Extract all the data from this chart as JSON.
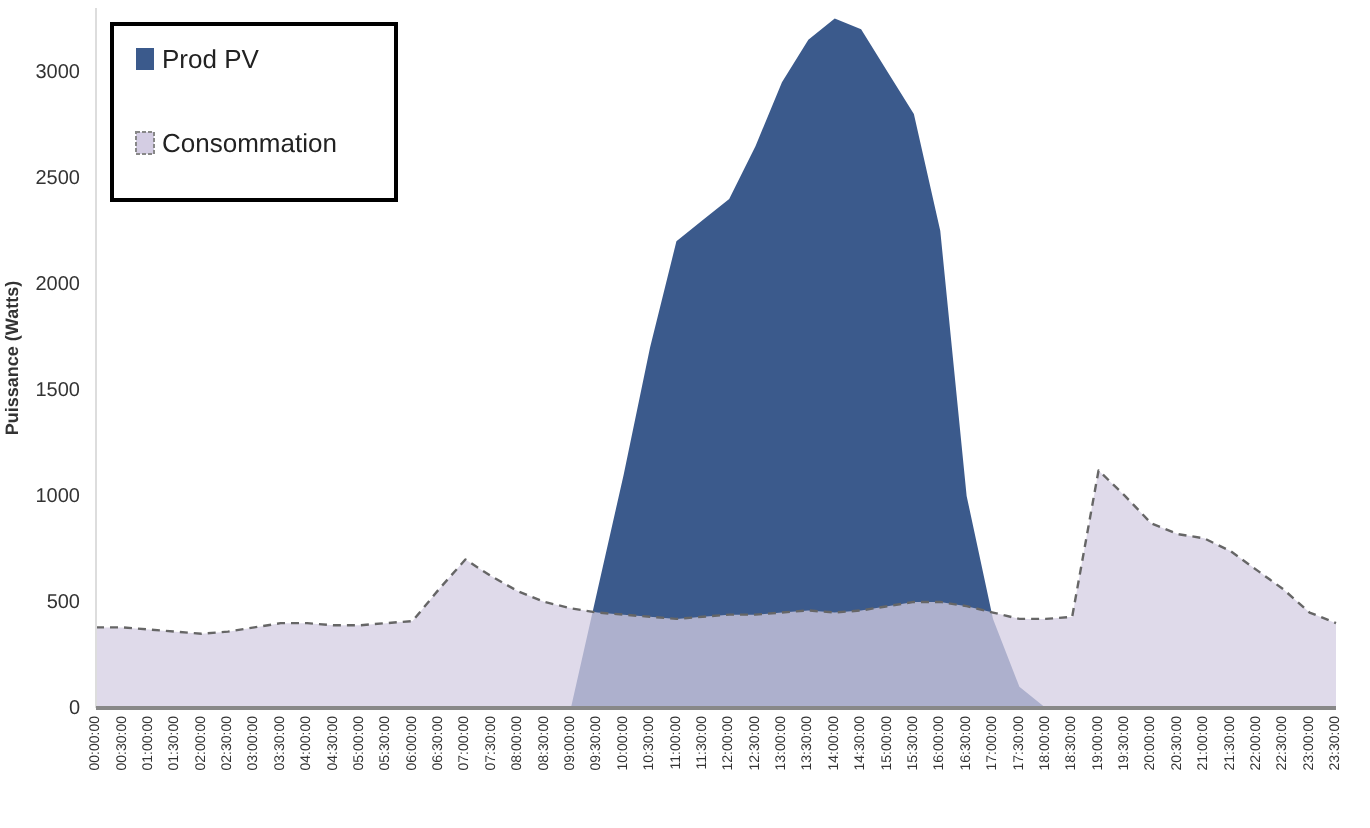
{
  "chart_data": {
    "type": "area",
    "ylabel": "Puissance (Watts)",
    "categories": [
      "00:00:00",
      "00:30:00",
      "01:00:00",
      "01:30:00",
      "02:00:00",
      "02:30:00",
      "03:00:00",
      "03:30:00",
      "04:00:00",
      "04:30:00",
      "05:00:00",
      "05:30:00",
      "06:00:00",
      "06:30:00",
      "07:00:00",
      "07:30:00",
      "08:00:00",
      "08:30:00",
      "09:00:00",
      "09:30:00",
      "10:00:00",
      "10:30:00",
      "11:00:00",
      "11:30:00",
      "12:00:00",
      "12:30:00",
      "13:00:00",
      "13:30:00",
      "14:00:00",
      "14:30:00",
      "15:00:00",
      "15:30:00",
      "16:00:00",
      "16:30:00",
      "17:00:00",
      "17:30:00",
      "18:00:00",
      "18:30:00",
      "19:00:00",
      "19:30:00",
      "20:00:00",
      "20:30:00",
      "21:00:00",
      "21:30:00",
      "22:00:00",
      "22:30:00",
      "23:00:00",
      "23:30:00"
    ],
    "series": [
      {
        "name": "Prod PV",
        "color": "#3b5a8c",
        "values": [
          0,
          0,
          0,
          0,
          0,
          0,
          0,
          0,
          0,
          0,
          0,
          0,
          0,
          0,
          0,
          0,
          0,
          0,
          0,
          550,
          1100,
          1700,
          2200,
          2300,
          2400,
          2650,
          2950,
          3150,
          3250,
          3200,
          3000,
          2800,
          2250,
          1000,
          420,
          100,
          0,
          0,
          0,
          0,
          0,
          0,
          0,
          0,
          0,
          0,
          0,
          0
        ]
      },
      {
        "name": "Consommation",
        "color": "#d4cde3",
        "line_style": "dashed",
        "values": [
          380,
          380,
          370,
          360,
          350,
          360,
          380,
          400,
          400,
          390,
          390,
          400,
          410,
          560,
          700,
          620,
          550,
          500,
          470,
          450,
          440,
          430,
          420,
          430,
          440,
          440,
          450,
          460,
          450,
          460,
          480,
          500,
          500,
          480,
          450,
          420,
          420,
          430,
          1120,
          1000,
          870,
          820,
          800,
          740,
          650,
          560,
          450,
          400
        ]
      }
    ],
    "ylim": [
      0,
      3300
    ],
    "yticks": [
      0,
      500,
      1000,
      1500,
      2000,
      2500,
      3000
    ],
    "grid": false,
    "legend": "top left"
  }
}
